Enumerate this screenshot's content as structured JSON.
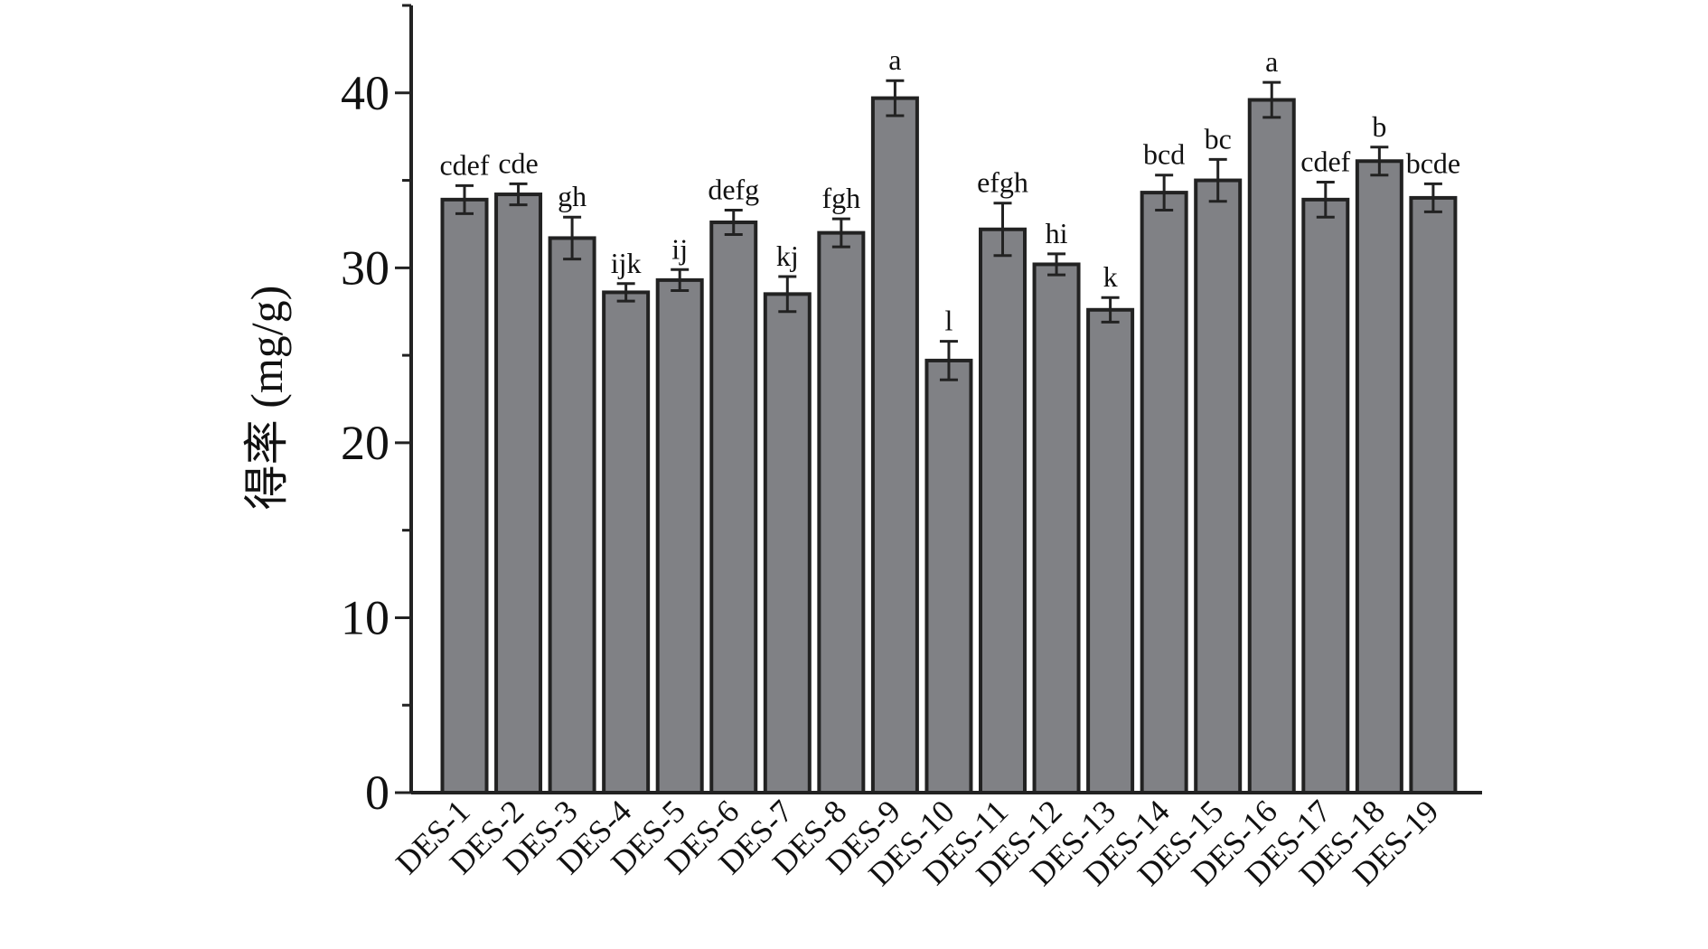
{
  "chart_data": {
    "type": "bar",
    "title": "",
    "xlabel": "",
    "ylabel": "得率 (mg/g)",
    "ylim": [
      0,
      45
    ],
    "yticks": [
      0,
      10,
      20,
      30,
      40
    ],
    "grid": false,
    "legend": "none",
    "bar_color": "#808185",
    "categories": [
      "DES-1",
      "DES-2",
      "DES-3",
      "DES-4",
      "DES-5",
      "DES-6",
      "DES-7",
      "DES-8",
      "DES-9",
      "DES-10",
      "DES-11",
      "DES-12",
      "DES-13",
      "DES-14",
      "DES-15",
      "DES-16",
      "DES-17",
      "DES-18",
      "DES-19"
    ],
    "values": [
      33.9,
      34.2,
      31.7,
      28.6,
      29.3,
      32.6,
      28.5,
      32.0,
      39.7,
      24.7,
      32.2,
      30.2,
      27.6,
      34.3,
      35.0,
      39.6,
      33.9,
      36.1,
      34.0
    ],
    "errors": [
      0.8,
      0.6,
      1.2,
      0.5,
      0.6,
      0.7,
      1.0,
      0.8,
      1.0,
      1.1,
      1.5,
      0.6,
      0.7,
      1.0,
      1.2,
      1.0,
      1.0,
      0.8,
      0.8
    ],
    "significance": [
      "cdef",
      "cde",
      "gh",
      "ijk",
      "ij",
      "defg",
      "kj",
      "fgh",
      "a",
      "l",
      "efgh",
      "hi",
      "k",
      "bcd",
      "bc",
      "a",
      "cdef",
      "b",
      "bcde"
    ]
  }
}
